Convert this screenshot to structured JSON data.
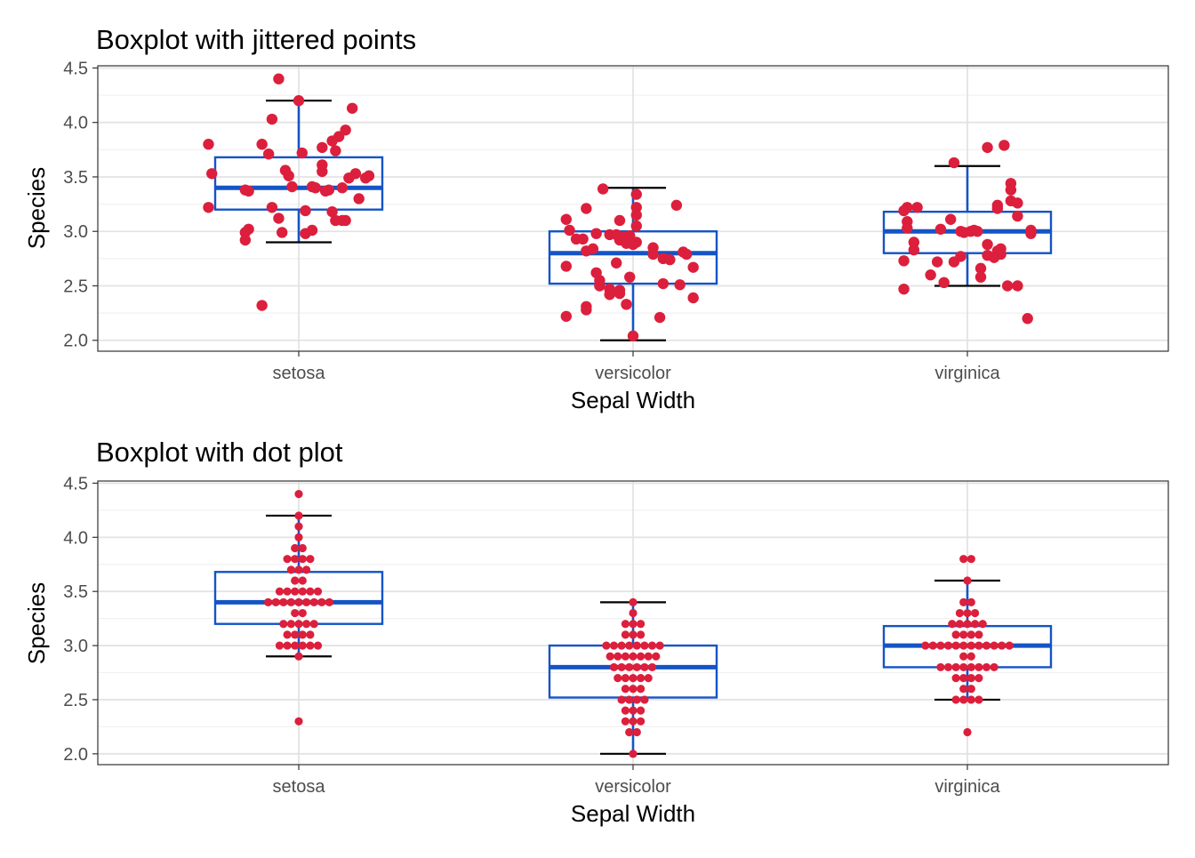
{
  "colors": {
    "box": "#1454C6",
    "point": "#DC1F3C",
    "whisker_cap": "#000000",
    "panel_border": "#333333",
    "grid_major": "#e3e3e3",
    "grid_minor": "#f1f1f1"
  },
  "chart_data": [
    {
      "type": "box",
      "title": "Boxplot with jittered points",
      "xlabel": "Sepal Width",
      "ylabel": "Species",
      "categories": [
        "setosa",
        "versicolor",
        "virginica"
      ],
      "ylim": [
        1.9,
        4.52
      ],
      "yticks": [
        "2.0",
        "2.5",
        "3.0",
        "3.5",
        "4.0",
        "4.5"
      ],
      "grid": true,
      "boxes": [
        {
          "q1": 3.2,
          "median": 3.4,
          "q3": 3.68,
          "whisker_low": 2.9,
          "whisker_high": 4.2
        },
        {
          "q1": 2.52,
          "median": 2.8,
          "q3": 3.0,
          "whisker_low": 2.0,
          "whisker_high": 3.4
        },
        {
          "q1": 2.8,
          "median": 3.0,
          "q3": 3.18,
          "whisker_low": 2.5,
          "whisker_high": 3.6
        }
      ],
      "points": [
        [
          {
            "x": -0.06,
            "y": 4.4
          },
          {
            "x": 0.0,
            "y": 4.2
          },
          {
            "x": 0.16,
            "y": 4.13
          },
          {
            "x": -0.08,
            "y": 4.03
          },
          {
            "x": 0.14,
            "y": 3.93
          },
          {
            "x": 0.12,
            "y": 3.87
          },
          {
            "x": 0.1,
            "y": 3.83
          },
          {
            "x": 0.11,
            "y": 3.74
          },
          {
            "x": -0.27,
            "y": 3.8
          },
          {
            "x": -0.11,
            "y": 3.8
          },
          {
            "x": 0.07,
            "y": 3.77
          },
          {
            "x": -0.09,
            "y": 3.71
          },
          {
            "x": 0.01,
            "y": 3.72
          },
          {
            "x": 0.07,
            "y": 3.61
          },
          {
            "x": -0.04,
            "y": 3.56
          },
          {
            "x": 0.07,
            "y": 3.55
          },
          {
            "x": -0.03,
            "y": 3.51
          },
          {
            "x": -0.26,
            "y": 3.53
          },
          {
            "x": 0.17,
            "y": 3.53
          },
          {
            "x": 0.21,
            "y": 3.51
          },
          {
            "x": 0.15,
            "y": 3.49
          },
          {
            "x": 0.2,
            "y": 3.49
          },
          {
            "x": -0.02,
            "y": 3.41
          },
          {
            "x": 0.04,
            "y": 3.41
          },
          {
            "x": 0.05,
            "y": 3.4
          },
          {
            "x": 0.09,
            "y": 3.38
          },
          {
            "x": 0.13,
            "y": 3.4
          },
          {
            "x": -0.16,
            "y": 3.38
          },
          {
            "x": -0.15,
            "y": 3.37
          },
          {
            "x": 0.08,
            "y": 3.37
          },
          {
            "x": 0.18,
            "y": 3.3
          },
          {
            "x": -0.27,
            "y": 3.22
          },
          {
            "x": -0.08,
            "y": 3.22
          },
          {
            "x": 0.02,
            "y": 3.19
          },
          {
            "x": 0.1,
            "y": 3.18
          },
          {
            "x": -0.06,
            "y": 3.12
          },
          {
            "x": 0.11,
            "y": 3.1
          },
          {
            "x": 0.13,
            "y": 3.1
          },
          {
            "x": 0.14,
            "y": 3.1
          },
          {
            "x": -0.15,
            "y": 3.02
          },
          {
            "x": -0.05,
            "y": 2.99
          },
          {
            "x": 0.02,
            "y": 2.98
          },
          {
            "x": 0.04,
            "y": 3.01
          },
          {
            "x": -0.16,
            "y": 2.99
          },
          {
            "x": -0.16,
            "y": 2.92
          },
          {
            "x": -0.11,
            "y": 2.32
          }
        ],
        [
          {
            "x": -0.09,
            "y": 3.39
          },
          {
            "x": 0.01,
            "y": 3.34
          },
          {
            "x": 0.13,
            "y": 3.24
          },
          {
            "x": -0.14,
            "y": 3.21
          },
          {
            "x": 0.01,
            "y": 3.22
          },
          {
            "x": 0.01,
            "y": 3.15
          },
          {
            "x": -0.04,
            "y": 3.1
          },
          {
            "x": -0.2,
            "y": 3.11
          },
          {
            "x": 0.01,
            "y": 3.05
          },
          {
            "x": -0.19,
            "y": 3.01
          },
          {
            "x": -0.11,
            "y": 2.98
          },
          {
            "x": -0.07,
            "y": 2.97
          },
          {
            "x": -0.05,
            "y": 2.97
          },
          {
            "x": -0.03,
            "y": 2.95
          },
          {
            "x": -0.01,
            "y": 2.96
          },
          {
            "x": -0.17,
            "y": 2.93
          },
          {
            "x": -0.15,
            "y": 2.93
          },
          {
            "x": -0.04,
            "y": 2.92
          },
          {
            "x": -0.01,
            "y": 2.93
          },
          {
            "x": 0.01,
            "y": 2.9
          },
          {
            "x": -0.02,
            "y": 2.89
          },
          {
            "x": 0.0,
            "y": 2.88
          },
          {
            "x": 0.06,
            "y": 2.85
          },
          {
            "x": 0.15,
            "y": 2.81
          },
          {
            "x": 0.16,
            "y": 2.79
          },
          {
            "x": -0.12,
            "y": 2.84
          },
          {
            "x": 0.06,
            "y": 2.79
          },
          {
            "x": 0.09,
            "y": 2.75
          },
          {
            "x": 0.11,
            "y": 2.74
          },
          {
            "x": -0.14,
            "y": 2.82
          },
          {
            "x": -0.05,
            "y": 2.71
          },
          {
            "x": -0.2,
            "y": 2.68
          },
          {
            "x": -0.11,
            "y": 2.62
          },
          {
            "x": 0.18,
            "y": 2.67
          },
          {
            "x": -0.01,
            "y": 2.58
          },
          {
            "x": -0.1,
            "y": 2.55
          },
          {
            "x": 0.09,
            "y": 2.52
          },
          {
            "x": 0.14,
            "y": 2.51
          },
          {
            "x": -0.1,
            "y": 2.5
          },
          {
            "x": -0.07,
            "y": 2.47
          },
          {
            "x": -0.04,
            "y": 2.46
          },
          {
            "x": -0.04,
            "y": 2.43
          },
          {
            "x": -0.07,
            "y": 2.42
          },
          {
            "x": 0.18,
            "y": 2.39
          },
          {
            "x": -0.02,
            "y": 2.33
          },
          {
            "x": -0.14,
            "y": 2.31
          },
          {
            "x": -0.14,
            "y": 2.28
          },
          {
            "x": -0.2,
            "y": 2.22
          },
          {
            "x": 0.08,
            "y": 2.21
          },
          {
            "x": 0.0,
            "y": 2.04
          }
        ],
        [
          {
            "x": 0.11,
            "y": 3.79
          },
          {
            "x": 0.06,
            "y": 3.77
          },
          {
            "x": -0.04,
            "y": 3.63
          },
          {
            "x": 0.13,
            "y": 3.44
          },
          {
            "x": 0.13,
            "y": 3.38
          },
          {
            "x": 0.13,
            "y": 3.28
          },
          {
            "x": 0.15,
            "y": 3.26
          },
          {
            "x": 0.09,
            "y": 3.24
          },
          {
            "x": 0.09,
            "y": 3.21
          },
          {
            "x": -0.18,
            "y": 3.22
          },
          {
            "x": -0.15,
            "y": 3.22
          },
          {
            "x": -0.19,
            "y": 3.19
          },
          {
            "x": 0.15,
            "y": 3.14
          },
          {
            "x": -0.05,
            "y": 3.11
          },
          {
            "x": -0.18,
            "y": 3.09
          },
          {
            "x": -0.18,
            "y": 3.03
          },
          {
            "x": -0.08,
            "y": 3.02
          },
          {
            "x": -0.02,
            "y": 3.0
          },
          {
            "x": 0.01,
            "y": 3.0
          },
          {
            "x": 0.02,
            "y": 3.01
          },
          {
            "x": -0.01,
            "y": 2.99
          },
          {
            "x": 0.03,
            "y": 3.0
          },
          {
            "x": 0.19,
            "y": 3.01
          },
          {
            "x": 0.19,
            "y": 2.98
          },
          {
            "x": -0.16,
            "y": 2.9
          },
          {
            "x": 0.06,
            "y": 2.88
          },
          {
            "x": 0.1,
            "y": 2.84
          },
          {
            "x": -0.16,
            "y": 2.83
          },
          {
            "x": 0.09,
            "y": 2.82
          },
          {
            "x": 0.1,
            "y": 2.79
          },
          {
            "x": -0.02,
            "y": 2.77
          },
          {
            "x": 0.06,
            "y": 2.78
          },
          {
            "x": 0.08,
            "y": 2.76
          },
          {
            "x": -0.19,
            "y": 2.73
          },
          {
            "x": -0.09,
            "y": 2.72
          },
          {
            "x": -0.04,
            "y": 2.72
          },
          {
            "x": 0.04,
            "y": 2.66
          },
          {
            "x": -0.11,
            "y": 2.6
          },
          {
            "x": 0.04,
            "y": 2.58
          },
          {
            "x": -0.07,
            "y": 2.53
          },
          {
            "x": 0.12,
            "y": 2.5
          },
          {
            "x": 0.15,
            "y": 2.5
          },
          {
            "x": -0.19,
            "y": 2.47
          },
          {
            "x": 0.18,
            "y": 2.2
          }
        ]
      ]
    },
    {
      "type": "box",
      "title": "Boxplot with dot plot",
      "xlabel": "Sepal Width",
      "ylabel": "Species",
      "categories": [
        "setosa",
        "versicolor",
        "virginica"
      ],
      "ylim": [
        1.9,
        4.52
      ],
      "yticks": [
        "2.0",
        "2.5",
        "3.0",
        "3.5",
        "4.0",
        "4.5"
      ],
      "grid": true,
      "boxes": [
        {
          "q1": 3.2,
          "median": 3.4,
          "q3": 3.68,
          "whisker_low": 2.9,
          "whisker_high": 4.2
        },
        {
          "q1": 2.52,
          "median": 2.8,
          "q3": 3.0,
          "whisker_low": 2.0,
          "whisker_high": 3.4
        },
        {
          "q1": 2.8,
          "median": 3.0,
          "q3": 3.18,
          "whisker_low": 2.5,
          "whisker_high": 3.6
        }
      ],
      "dot_counts": [
        [
          {
            "value": 2.3,
            "count": 1
          },
          {
            "value": 2.9,
            "count": 1
          },
          {
            "value": 3.0,
            "count": 6
          },
          {
            "value": 3.1,
            "count": 4
          },
          {
            "value": 3.2,
            "count": 5
          },
          {
            "value": 3.3,
            "count": 2
          },
          {
            "value": 3.4,
            "count": 9
          },
          {
            "value": 3.5,
            "count": 6
          },
          {
            "value": 3.6,
            "count": 2
          },
          {
            "value": 3.7,
            "count": 3
          },
          {
            "value": 3.8,
            "count": 4
          },
          {
            "value": 3.9,
            "count": 2
          },
          {
            "value": 4.0,
            "count": 1
          },
          {
            "value": 4.1,
            "count": 1
          },
          {
            "value": 4.2,
            "count": 1
          },
          {
            "value": 4.4,
            "count": 1
          }
        ],
        [
          {
            "value": 2.0,
            "count": 1
          },
          {
            "value": 2.2,
            "count": 2
          },
          {
            "value": 2.3,
            "count": 3
          },
          {
            "value": 2.4,
            "count": 3
          },
          {
            "value": 2.5,
            "count": 4
          },
          {
            "value": 2.6,
            "count": 3
          },
          {
            "value": 2.7,
            "count": 5
          },
          {
            "value": 2.8,
            "count": 6
          },
          {
            "value": 2.9,
            "count": 7
          },
          {
            "value": 3.0,
            "count": 8
          },
          {
            "value": 3.1,
            "count": 3
          },
          {
            "value": 3.2,
            "count": 3
          },
          {
            "value": 3.3,
            "count": 1
          },
          {
            "value": 3.4,
            "count": 1
          }
        ],
        [
          {
            "value": 2.2,
            "count": 1
          },
          {
            "value": 2.5,
            "count": 4
          },
          {
            "value": 2.6,
            "count": 2
          },
          {
            "value": 2.7,
            "count": 4
          },
          {
            "value": 2.8,
            "count": 8
          },
          {
            "value": 2.9,
            "count": 2
          },
          {
            "value": 3.0,
            "count": 12
          },
          {
            "value": 3.1,
            "count": 4
          },
          {
            "value": 3.2,
            "count": 5
          },
          {
            "value": 3.3,
            "count": 3
          },
          {
            "value": 3.4,
            "count": 2
          },
          {
            "value": 3.6,
            "count": 1
          },
          {
            "value": 3.8,
            "count": 2
          }
        ]
      ]
    }
  ]
}
